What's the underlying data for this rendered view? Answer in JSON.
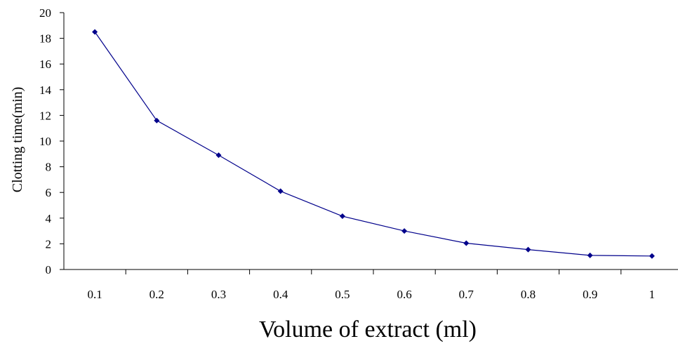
{
  "chart_data": {
    "type": "line",
    "title": "",
    "xlabel": "Volume of extract (ml)",
    "ylabel": "Clotting time(min)",
    "categories": [
      "0.1",
      "0.2",
      "0.3",
      "0.4",
      "0.5",
      "0.6",
      "0.7",
      "0.8",
      "0.9",
      "1"
    ],
    "series": [
      {
        "values": [
          18.5,
          11.6,
          8.9,
          6.1,
          4.15,
          3.0,
          2.05,
          1.55,
          1.1,
          1.05
        ],
        "color": "#00008b",
        "marker": "diamond"
      }
    ],
    "ylim": [
      0,
      20
    ],
    "yticks": [
      0,
      2,
      4,
      6,
      8,
      10,
      12,
      14,
      16,
      18,
      20
    ],
    "grid": false,
    "legend": "none"
  }
}
